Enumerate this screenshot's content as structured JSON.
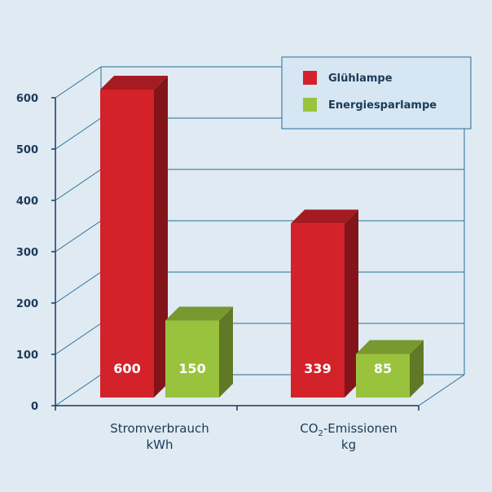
{
  "chart_data": {
    "type": "bar",
    "title": "",
    "xlabel": "",
    "ylabel": "",
    "ylim": [
      0,
      600
    ],
    "yticks": [
      "0",
      "100",
      "200",
      "300",
      "400",
      "500",
      "600"
    ],
    "grid": true,
    "legend_position": "top-right",
    "categories": [
      {
        "line1_main": "Stromverbrauch",
        "line1_sub": "",
        "line1_rest": "",
        "line2": "kWh"
      },
      {
        "line1_main": "CO",
        "line1_sub": "2",
        "line1_rest": "-Emissionen",
        "line2": "kg"
      }
    ],
    "series": [
      {
        "name": "Glühlampe",
        "color": "#d3222a",
        "values": [
          600,
          339
        ],
        "labels": [
          "600",
          "339"
        ]
      },
      {
        "name": "Energiesparlampe",
        "color": "#9ac33d",
        "values": [
          150,
          85
        ],
        "labels": [
          "150",
          "85"
        ]
      }
    ]
  }
}
